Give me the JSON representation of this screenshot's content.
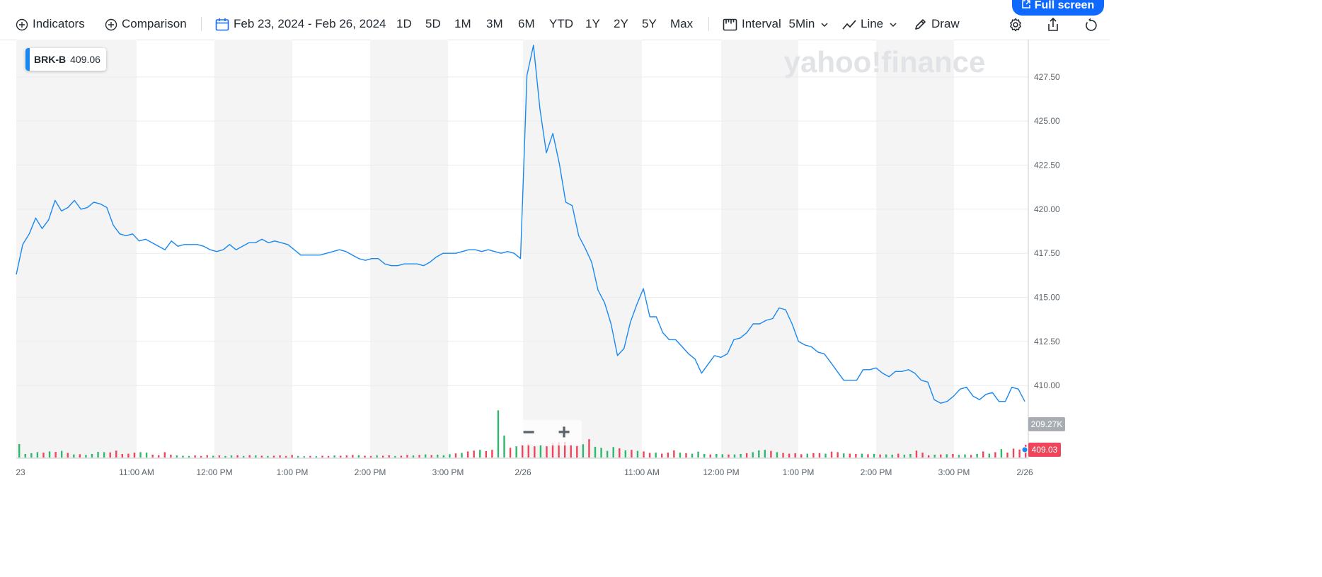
{
  "toolbar": {
    "indicators_label": "Indicators",
    "comparison_label": "Comparison",
    "date_range": "Feb 23, 2024 - Feb 26, 2024",
    "ranges": [
      "1D",
      "5D",
      "1M",
      "3M",
      "6M",
      "YTD",
      "1Y",
      "2Y",
      "5Y",
      "Max"
    ],
    "interval_label": "Interval",
    "interval_value": "5Min",
    "chart_type_label": "Line",
    "draw_label": "Draw",
    "fullscreen_label": "Full screen",
    "accent_color": "#0f69ff"
  },
  "ticker": {
    "symbol": "BRK-B",
    "value": "409.06"
  },
  "watermark": "yahoo!finance",
  "zoom": {
    "minus": "−",
    "plus": "+"
  },
  "chart_data": {
    "type": "line",
    "title": "",
    "xlabel": "",
    "ylabel": "",
    "ylim": [
      406.2,
      429.3
    ],
    "y_ticks": [
      "427.50",
      "425.00",
      "422.50",
      "420.00",
      "417.50",
      "415.00",
      "412.50",
      "410.00"
    ],
    "x_ticks": [
      "23",
      "11:00 AM",
      "12:00 PM",
      "1:00 PM",
      "2:00 PM",
      "3:00 PM",
      "2/26",
      "11:00 AM",
      "12:00 PM",
      "1:00 PM",
      "2:00 PM",
      "3:00 PM",
      "2/26"
    ],
    "grid": true,
    "line_color": "#1a88f0",
    "series": [
      {
        "values": [
          416.3,
          418.0,
          418.6,
          419.5,
          418.9,
          419.4,
          420.5,
          419.9,
          420.1,
          420.5,
          420.0,
          420.1,
          420.4,
          420.3,
          420.1,
          419.1,
          418.6,
          418.5,
          418.6,
          418.2,
          418.3,
          418.1,
          417.9,
          417.7,
          418.2,
          417.9,
          418.0,
          418.0,
          418.0,
          417.9,
          417.7,
          417.6,
          417.7,
          418.0,
          417.7,
          417.9,
          418.1,
          418.1,
          418.3,
          418.1,
          418.2,
          418.1,
          418.0,
          417.7,
          417.4,
          417.4,
          417.4,
          417.4,
          417.5,
          417.6,
          417.7,
          417.6,
          417.4,
          417.2,
          417.1,
          417.2,
          417.2,
          416.9,
          416.8,
          416.8,
          416.9,
          416.9,
          416.9,
          416.8,
          417.0,
          417.3,
          417.5,
          417.5,
          417.5,
          417.6,
          417.7,
          417.7,
          417.6,
          417.7,
          417.6,
          417.5,
          417.6,
          417.5,
          417.2,
          427.6,
          429.3,
          425.7,
          423.2,
          424.3,
          422.6,
          420.4,
          420.2,
          418.5,
          417.8,
          417.0,
          415.4,
          414.7,
          413.5,
          411.7,
          412.1,
          413.6,
          414.6,
          415.5,
          413.9,
          413.9,
          413.0,
          412.6,
          412.6,
          412.2,
          411.8,
          411.5,
          410.7,
          411.2,
          411.7,
          411.6,
          411.8,
          412.6,
          412.7,
          413.0,
          413.5,
          413.5,
          413.7,
          413.8,
          414.4,
          414.3,
          413.5,
          412.5,
          412.3,
          412.2,
          411.9,
          411.8,
          411.3,
          410.8,
          410.3,
          410.3,
          410.3,
          410.9,
          410.9,
          411.0,
          410.7,
          410.5,
          410.8,
          410.8,
          410.9,
          410.7,
          410.3,
          410.2,
          409.2,
          409.0,
          409.1,
          409.4,
          409.8,
          409.9,
          409.4,
          409.2,
          409.5,
          409.6,
          409.1,
          409.1,
          409.9,
          409.8,
          409.1
        ]
      }
    ],
    "volume": {
      "label": "209.27K",
      "up_color": "#2eb86c",
      "down_color": "#f0445a",
      "bars": [
        [
          0.53,
          1
        ],
        [
          0.14,
          1
        ],
        [
          0.17,
          1
        ],
        [
          0.21,
          1
        ],
        [
          0.19,
          0
        ],
        [
          0.24,
          1
        ],
        [
          0.22,
          0
        ],
        [
          0.26,
          1
        ],
        [
          0.18,
          0
        ],
        [
          0.12,
          1
        ],
        [
          0.13,
          0
        ],
        [
          0.1,
          1
        ],
        [
          0.14,
          1
        ],
        [
          0.22,
          1
        ],
        [
          0.21,
          1
        ],
        [
          0.2,
          0
        ],
        [
          0.27,
          0
        ],
        [
          0.14,
          0
        ],
        [
          0.15,
          0
        ],
        [
          0.19,
          0
        ],
        [
          0.21,
          1
        ],
        [
          0.19,
          1
        ],
        [
          0.11,
          0
        ],
        [
          0.09,
          0
        ],
        [
          0.21,
          0
        ],
        [
          0.11,
          0
        ],
        [
          0.08,
          1
        ],
        [
          0.07,
          1
        ],
        [
          0.06,
          1
        ],
        [
          0.08,
          0
        ],
        [
          0.06,
          0
        ],
        [
          0.09,
          0
        ],
        [
          0.07,
          1
        ],
        [
          0.08,
          0
        ],
        [
          0.06,
          1
        ],
        [
          0.08,
          1
        ],
        [
          0.09,
          0
        ],
        [
          0.06,
          1
        ],
        [
          0.09,
          0
        ],
        [
          0.08,
          1
        ],
        [
          0.07,
          0
        ],
        [
          0.06,
          1
        ],
        [
          0.07,
          0
        ],
        [
          0.08,
          0
        ],
        [
          0.06,
          0
        ],
        [
          0.1,
          0
        ],
        [
          0.06,
          1
        ],
        [
          0.05,
          1
        ],
        [
          0.06,
          0
        ],
        [
          0.05,
          1
        ],
        [
          0.07,
          0
        ],
        [
          0.06,
          0
        ],
        [
          0.08,
          1
        ],
        [
          0.07,
          0
        ],
        [
          0.08,
          0
        ],
        [
          0.1,
          0
        ],
        [
          0.09,
          1
        ],
        [
          0.07,
          0
        ],
        [
          0.06,
          0
        ],
        [
          0.08,
          1
        ],
        [
          0.07,
          0
        ],
        [
          0.09,
          0
        ],
        [
          0.06,
          1
        ],
        [
          0.07,
          0
        ],
        [
          0.1,
          0
        ],
        [
          0.08,
          1
        ],
        [
          0.1,
          0
        ],
        [
          0.12,
          1
        ],
        [
          0.09,
          0
        ],
        [
          0.11,
          1
        ],
        [
          0.09,
          1
        ],
        [
          0.13,
          1
        ],
        [
          0.16,
          0
        ],
        [
          0.18,
          1
        ],
        [
          0.24,
          0
        ],
        [
          0.27,
          0
        ],
        [
          0.3,
          1
        ],
        [
          0.25,
          0
        ],
        [
          0.3,
          0
        ],
        [
          1.85,
          1
        ],
        [
          0.86,
          1
        ],
        [
          0.38,
          0
        ],
        [
          0.44,
          1
        ],
        [
          0.49,
          0
        ],
        [
          0.54,
          0
        ],
        [
          0.44,
          0
        ],
        [
          0.5,
          1
        ],
        [
          0.44,
          0
        ],
        [
          0.55,
          0
        ],
        [
          0.6,
          0
        ],
        [
          0.62,
          0
        ],
        [
          0.5,
          0
        ],
        [
          0.45,
          0
        ],
        [
          0.52,
          1
        ],
        [
          0.72,
          0
        ],
        [
          0.42,
          1
        ],
        [
          0.38,
          1
        ],
        [
          0.26,
          1
        ],
        [
          0.41,
          1
        ],
        [
          0.36,
          0
        ],
        [
          0.28,
          1
        ],
        [
          0.3,
          0
        ],
        [
          0.26,
          1
        ],
        [
          0.24,
          0
        ],
        [
          0.18,
          0
        ],
        [
          0.19,
          1
        ],
        [
          0.15,
          0
        ],
        [
          0.19,
          0
        ],
        [
          0.28,
          0
        ],
        [
          0.19,
          1
        ],
        [
          0.17,
          0
        ],
        [
          0.15,
          1
        ],
        [
          0.23,
          1
        ],
        [
          0.14,
          1
        ],
        [
          0.12,
          0
        ],
        [
          0.14,
          1
        ],
        [
          0.13,
          1
        ],
        [
          0.12,
          0
        ],
        [
          0.12,
          1
        ],
        [
          0.14,
          1
        ],
        [
          0.17,
          0
        ],
        [
          0.21,
          1
        ],
        [
          0.28,
          1
        ],
        [
          0.3,
          1
        ],
        [
          0.26,
          0
        ],
        [
          0.21,
          1
        ],
        [
          0.18,
          0
        ],
        [
          0.15,
          0
        ],
        [
          0.17,
          0
        ],
        [
          0.13,
          0
        ],
        [
          0.15,
          1
        ],
        [
          0.17,
          0
        ],
        [
          0.17,
          0
        ],
        [
          0.15,
          1
        ],
        [
          0.23,
          0
        ],
        [
          0.21,
          0
        ],
        [
          0.16,
          1
        ],
        [
          0.15,
          0
        ],
        [
          0.14,
          0
        ],
        [
          0.15,
          1
        ],
        [
          0.13,
          0
        ],
        [
          0.14,
          1
        ],
        [
          0.12,
          0
        ],
        [
          0.12,
          1
        ],
        [
          0.11,
          1
        ],
        [
          0.15,
          0
        ],
        [
          0.11,
          1
        ],
        [
          0.14,
          1
        ],
        [
          0.27,
          0
        ],
        [
          0.19,
          0
        ],
        [
          0.09,
          0
        ],
        [
          0.11,
          1
        ],
        [
          0.12,
          0
        ],
        [
          0.13,
          1
        ],
        [
          0.14,
          0
        ],
        [
          0.1,
          1
        ],
        [
          0.12,
          1
        ],
        [
          0.1,
          0
        ],
        [
          0.14,
          1
        ],
        [
          0.24,
          0
        ],
        [
          0.15,
          1
        ],
        [
          0.21,
          0
        ],
        [
          0.33,
          1
        ],
        [
          0.19,
          0
        ],
        [
          0.35,
          0
        ],
        [
          0.31,
          0
        ],
        [
          0.5,
          0
        ]
      ]
    },
    "last_price_label": "409.03",
    "last_price_color": "#f0445a"
  }
}
